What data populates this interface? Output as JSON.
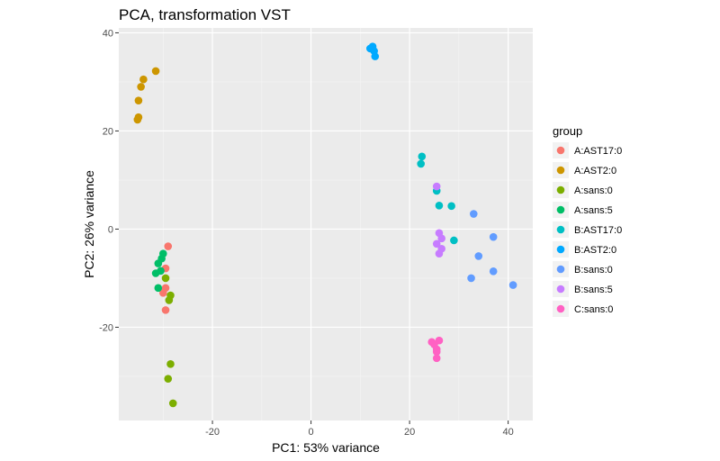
{
  "chart_data": {
    "type": "scatter",
    "title": "PCA, transformation VST",
    "xlabel": "PC1: 53% variance",
    "ylabel": "PC2: 26% variance",
    "xlim": [
      -39,
      45
    ],
    "ylim": [
      -39,
      41
    ],
    "xticks": [
      -20,
      0,
      20,
      40
    ],
    "yticks": [
      -20,
      0,
      20,
      40
    ],
    "x_tick_labels": [
      "-20",
      "0",
      "20",
      "40"
    ],
    "y_tick_labels": [
      "-20",
      "0",
      "20",
      "40"
    ],
    "grid": true,
    "legend_title": "group",
    "legend_position": "right",
    "series": [
      {
        "name": "A:AST17:0",
        "color": "#F8766D",
        "points": [
          [
            -29,
            -3.5
          ],
          [
            -29.5,
            -8
          ],
          [
            -29.5,
            -12
          ],
          [
            -29.5,
            -16.5
          ],
          [
            -30,
            -13
          ]
        ]
      },
      {
        "name": "A:AST2:0",
        "color": "#CD9600",
        "points": [
          [
            -31.5,
            32.2
          ],
          [
            -34,
            30.5
          ],
          [
            -34.5,
            29
          ],
          [
            -35,
            26.2
          ],
          [
            -35,
            22.8
          ],
          [
            -35.2,
            22.3
          ]
        ]
      },
      {
        "name": "A:sans:0",
        "color": "#7CAE00",
        "points": [
          [
            -29.5,
            -10
          ],
          [
            -28.5,
            -13.5
          ],
          [
            -28.8,
            -14.5
          ],
          [
            -28.5,
            -27.5
          ],
          [
            -29,
            -30.5
          ],
          [
            -28,
            -35.5
          ]
        ]
      },
      {
        "name": "A:sans:5",
        "color": "#00BE67",
        "points": [
          [
            -30,
            -5
          ],
          [
            -30.3,
            -6
          ],
          [
            -31,
            -7
          ],
          [
            -30.5,
            -8.5
          ],
          [
            -31.5,
            -9
          ],
          [
            -31,
            -12
          ]
        ]
      },
      {
        "name": "B:AST17:0",
        "color": "#00BFC4",
        "points": [
          [
            22.5,
            14.8
          ],
          [
            22.3,
            13.3
          ],
          [
            25.5,
            7.8
          ],
          [
            26,
            4.8
          ],
          [
            28.5,
            4.7
          ],
          [
            29,
            -2.3
          ]
        ]
      },
      {
        "name": "B:AST2:0",
        "color": "#00A9FF",
        "points": [
          [
            12,
            36.8
          ],
          [
            12.5,
            37.2
          ],
          [
            12.8,
            36.3
          ],
          [
            13,
            35.2
          ]
        ]
      },
      {
        "name": "B:sans:0",
        "color": "#619CFF",
        "points": [
          [
            33,
            3.1
          ],
          [
            37,
            -1.6
          ],
          [
            34,
            -5.5
          ],
          [
            37,
            -8.6
          ],
          [
            32.5,
            -10
          ],
          [
            41,
            -11.4
          ]
        ]
      },
      {
        "name": "B:sans:5",
        "color": "#C77CFF",
        "points": [
          [
            25.5,
            8.7
          ],
          [
            26,
            -0.8
          ],
          [
            26.5,
            -1.9
          ],
          [
            25.5,
            -3
          ],
          [
            26.5,
            -4
          ],
          [
            26,
            -5
          ]
        ]
      },
      {
        "name": "C:sans:0",
        "color": "#FF61C3",
        "points": [
          [
            24.5,
            -23
          ],
          [
            25,
            -23.5
          ],
          [
            26,
            -22.7
          ],
          [
            25.5,
            -24.5
          ],
          [
            25.5,
            -25
          ],
          [
            25.5,
            -26.3
          ]
        ]
      }
    ]
  },
  "colors": {
    "panel_background": "#EBEBEB",
    "grid_major": "#FFFFFF",
    "grid_minor": "#F5F5F5"
  }
}
